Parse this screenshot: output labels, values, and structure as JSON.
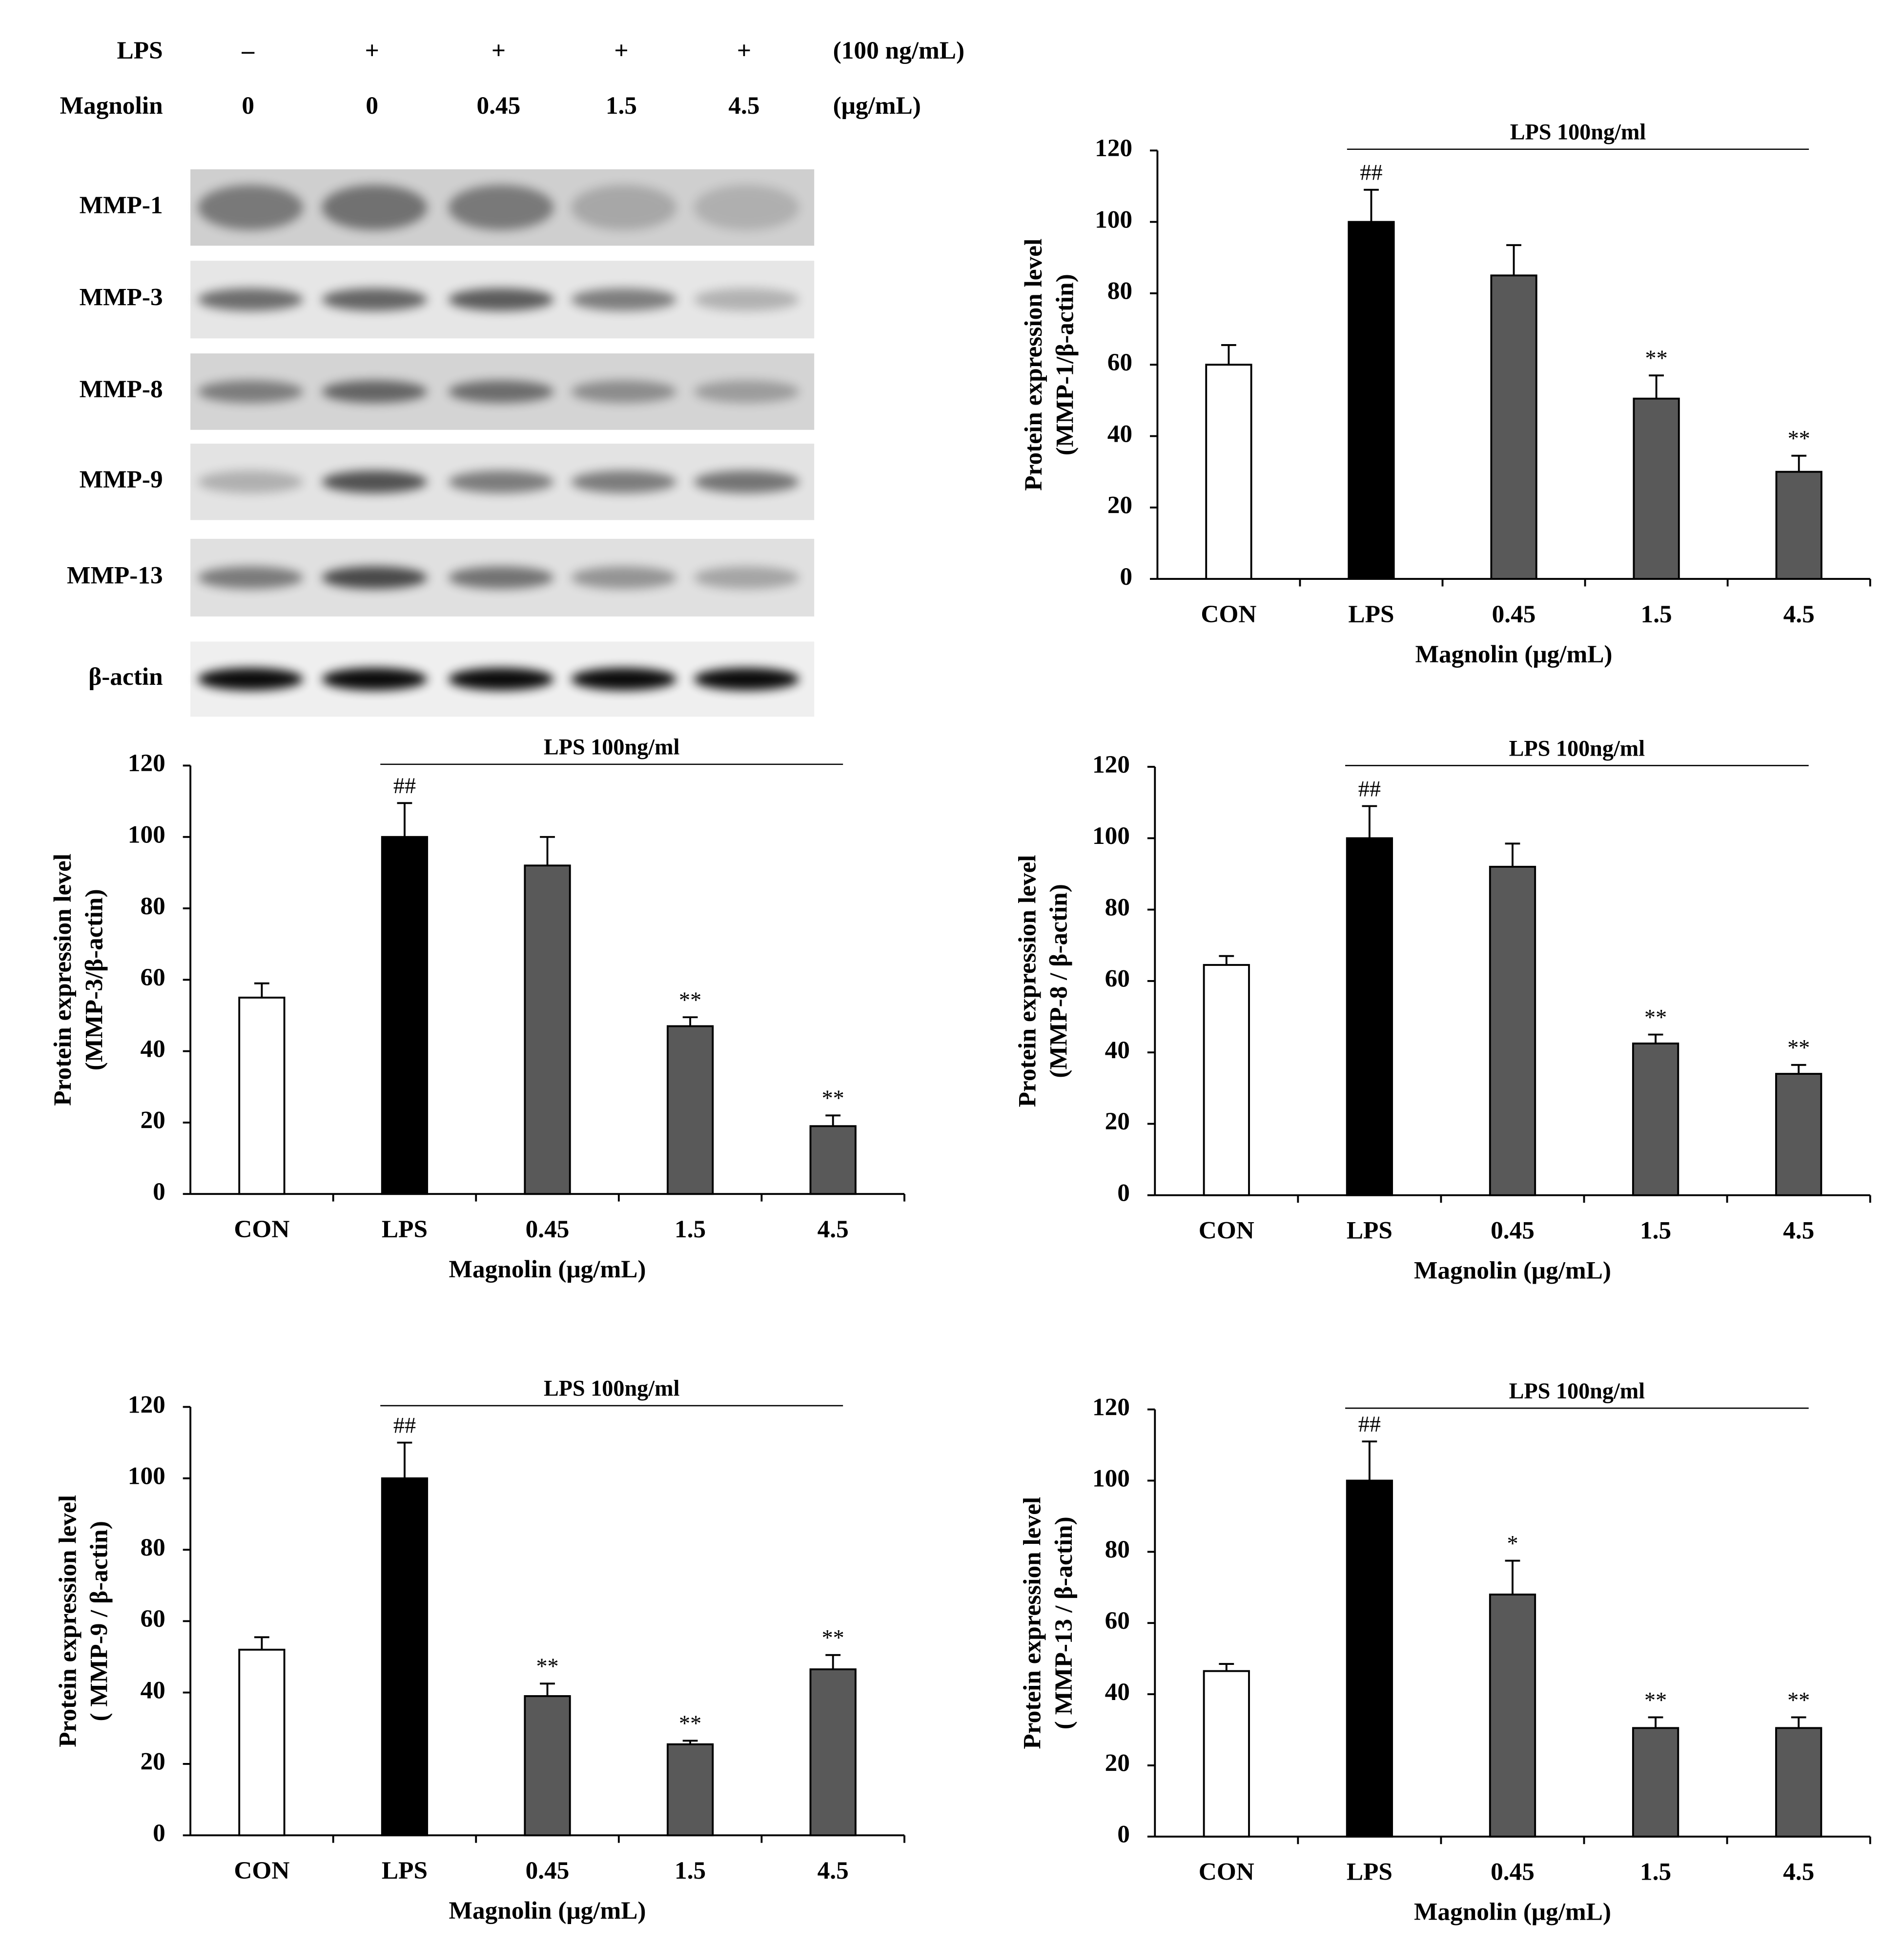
{
  "blot": {
    "treatments": [
      {
        "label": "LPS",
        "levels": [
          "–",
          "+",
          "+",
          "+",
          "+"
        ],
        "unit": "(100 ng/mL)"
      },
      {
        "label": "Magnolin",
        "levels": [
          "0",
          "0",
          "0.45",
          "1.5",
          "4.5"
        ],
        "unit": "(μg/mL)"
      }
    ],
    "bands": [
      "MMP-1",
      "MMP-3",
      "MMP-8",
      "MMP-9",
      "MMP-13",
      "β-actin"
    ]
  },
  "chart_data": [
    {
      "type": "bar",
      "annotation": "LPS 100ng/ml",
      "y_label": [
        "Protein expression level",
        "(MMP-1/β-actin)"
      ],
      "x_label": "Magnolin (μg/mL)",
      "categories": [
        "CON",
        "LPS",
        "0.45",
        "1.5",
        "4.5"
      ],
      "values": [
        60,
        100,
        85,
        50.5,
        30
      ],
      "errors": [
        5.5,
        9,
        8.5,
        6.5,
        4.5
      ],
      "significance": [
        null,
        "##",
        null,
        "**",
        "**"
      ],
      "colors": [
        "#ffffff",
        "#000000",
        "#595959",
        "#595959",
        "#595959"
      ],
      "ylim": [
        0,
        120
      ],
      "yticks": [
        0,
        20,
        40,
        60,
        80,
        100,
        120
      ]
    },
    {
      "type": "bar",
      "annotation": "LPS 100ng/ml",
      "y_label": [
        "Protein expression level",
        "(MMP-3/β-actin)"
      ],
      "x_label": "Magnolin (μg/mL)",
      "categories": [
        "CON",
        "LPS",
        "0.45",
        "1.5",
        "4.5"
      ],
      "values": [
        55,
        100,
        92,
        47,
        19
      ],
      "errors": [
        4,
        9.5,
        8,
        2.5,
        3
      ],
      "significance": [
        null,
        "##",
        null,
        "**",
        "**"
      ],
      "colors": [
        "#ffffff",
        "#000000",
        "#595959",
        "#595959",
        "#595959"
      ],
      "ylim": [
        0,
        120
      ],
      "yticks": [
        0,
        20,
        40,
        60,
        80,
        100,
        120
      ]
    },
    {
      "type": "bar",
      "annotation": "LPS 100ng/ml",
      "y_label": [
        "Protein expression level",
        "(MMP-8 / β-actin)"
      ],
      "x_label": "Magnolin (μg/mL)",
      "categories": [
        "CON",
        "LPS",
        "0.45",
        "1.5",
        "4.5"
      ],
      "values": [
        64.5,
        100,
        92,
        42.5,
        34
      ],
      "errors": [
        2.5,
        9,
        6.5,
        2.5,
        2.5
      ],
      "significance": [
        null,
        "##",
        null,
        "**",
        "**"
      ],
      "colors": [
        "#ffffff",
        "#000000",
        "#595959",
        "#595959",
        "#595959"
      ],
      "ylim": [
        0,
        120
      ],
      "yticks": [
        0,
        20,
        40,
        60,
        80,
        100,
        120
      ]
    },
    {
      "type": "bar",
      "annotation": "LPS 100ng/ml",
      "y_label": [
        "Protein expression level",
        "( MMP-9 / β-actin)"
      ],
      "x_label": "Magnolin (μg/mL)",
      "categories": [
        "CON",
        "LPS",
        "0.45",
        "1.5",
        "4.5"
      ],
      "values": [
        52,
        100,
        39,
        25.5,
        46.5
      ],
      "errors": [
        3.5,
        10,
        3.5,
        1,
        4
      ],
      "significance": [
        null,
        "##",
        "**",
        "**",
        "**"
      ],
      "colors": [
        "#ffffff",
        "#000000",
        "#595959",
        "#595959",
        "#595959"
      ],
      "ylim": [
        0,
        120
      ],
      "yticks": [
        0,
        20,
        40,
        60,
        80,
        100,
        120
      ]
    },
    {
      "type": "bar",
      "annotation": "LPS 100ng/ml",
      "y_label": [
        "Protein expression level",
        "( MMP-13 / β-actin)"
      ],
      "x_label": "Magnolin (μg/mL)",
      "categories": [
        "CON",
        "LPS",
        "0.45",
        "1.5",
        "4.5"
      ],
      "values": [
        46.5,
        100,
        68,
        30.5,
        30.5
      ],
      "errors": [
        2,
        11,
        9.5,
        3,
        3
      ],
      "significance": [
        null,
        "##",
        "*",
        "**",
        "**"
      ],
      "colors": [
        "#ffffff",
        "#000000",
        "#595959",
        "#595959",
        "#595959"
      ],
      "ylim": [
        0,
        120
      ],
      "yticks": [
        0,
        20,
        40,
        60,
        80,
        100,
        120
      ]
    }
  ]
}
